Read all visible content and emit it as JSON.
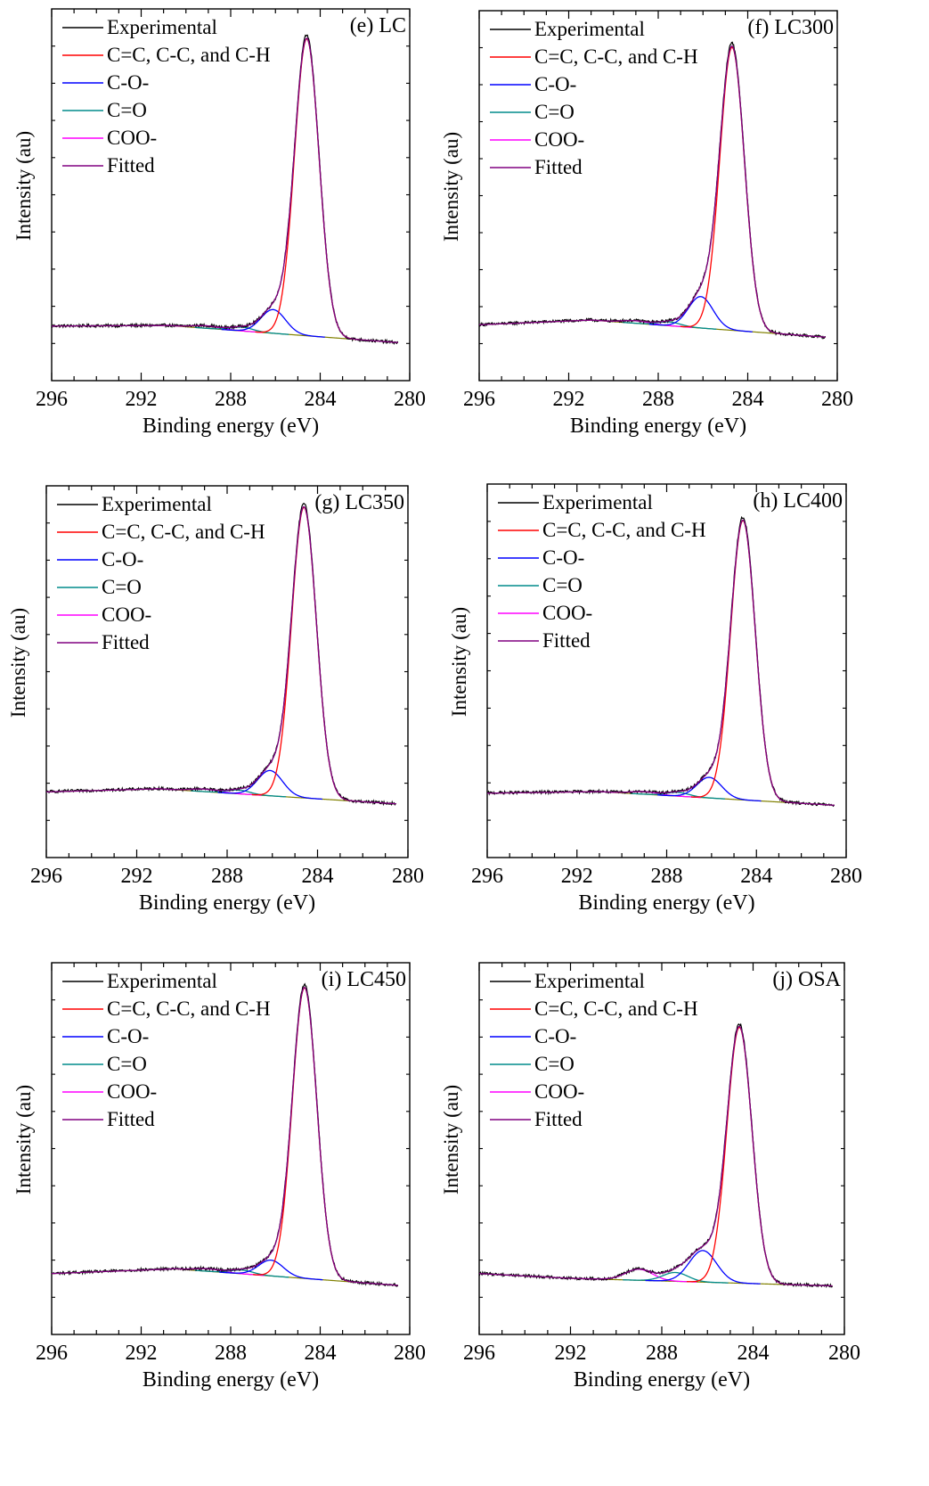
{
  "colors": {
    "experimental": "#000000",
    "cc": "#ff0000",
    "co": "#0000ff",
    "c_eq_o": "#008b8b",
    "coo": "#ff00ff",
    "fitted": "#800080",
    "baseline": "#808000"
  },
  "chart_data": [
    {
      "type": "line",
      "panel_label": "(e) LC",
      "xlabel": "Binding energy (eV)",
      "ylabel": "Intensity (au)",
      "xlim": [
        296,
        280
      ],
      "x_reversed": true,
      "xticks": [
        296,
        292,
        288,
        284,
        280
      ],
      "legend": {
        "placement": "top-left",
        "entries": [
          "Experimental",
          "C=C, C-C, and C-H",
          "C-O-",
          "C=O",
          "COO-",
          "Fitted"
        ]
      },
      "ylim": [
        0,
        1.0
      ],
      "baseline": {
        "left": 0.055,
        "knee_x": 290.8,
        "knee_y": 0.057,
        "right": 0.0
      },
      "peaks": [
        {
          "series": "C=C, C-C, and C-H",
          "center": 284.6,
          "height": 0.94,
          "width": 0.55
        },
        {
          "series": "C-O-",
          "center": 286.1,
          "height": 0.075,
          "width": 0.55
        },
        {
          "series": "C=O",
          "center": 287.5,
          "height": 0.012,
          "width": 0.5
        },
        {
          "series": "COO-",
          "center": 289.1,
          "height": 0.008,
          "width": 0.6
        }
      ]
    },
    {
      "type": "line",
      "panel_label": "(f) LC300",
      "xlabel": "Binding energy (eV)",
      "ylabel": "Intensity (au)",
      "xlim": [
        296,
        280
      ],
      "x_reversed": true,
      "xticks": [
        296,
        292,
        288,
        284,
        280
      ],
      "legend": {
        "placement": "top-left",
        "entries": [
          "Experimental",
          "C=C, C-C, and C-H",
          "C-O-",
          "C=O",
          "COO-",
          "Fitted"
        ]
      },
      "ylim": [
        0,
        1.0
      ],
      "baseline": {
        "left": 0.06,
        "knee_x": 291.0,
        "knee_y": 0.075,
        "right": 0.018
      },
      "peaks": [
        {
          "series": "C=C, C-C, and C-H",
          "center": 284.7,
          "height": 0.9,
          "width": 0.55
        },
        {
          "series": "C-O-",
          "center": 286.1,
          "height": 0.1,
          "width": 0.55
        },
        {
          "series": "C=O",
          "center": 287.5,
          "height": 0.012,
          "width": 0.5
        },
        {
          "series": "COO-",
          "center": 289.0,
          "height": 0.008,
          "width": 0.6
        }
      ]
    },
    {
      "type": "line",
      "panel_label": "(g) LC350",
      "xlabel": "Binding energy (eV)",
      "ylabel": "Intensity (au)",
      "xlim": [
        296,
        280
      ],
      "x_reversed": true,
      "xticks": [
        296,
        292,
        288,
        284,
        280
      ],
      "legend": {
        "placement": "top-left",
        "entries": [
          "Experimental",
          "C=C, C-C, and C-H",
          "C-O-",
          "C=O",
          "COO-",
          "Fitted"
        ]
      },
      "ylim": [
        0,
        1.0
      ],
      "baseline": {
        "left": 0.09,
        "knee_x": 291.0,
        "knee_y": 0.1,
        "right": 0.05
      },
      "peaks": [
        {
          "series": "C=C, C-C, and C-H",
          "center": 284.6,
          "height": 0.92,
          "width": 0.55
        },
        {
          "series": "C-O-",
          "center": 286.1,
          "height": 0.08,
          "width": 0.55
        },
        {
          "series": "C=O",
          "center": 287.5,
          "height": 0.012,
          "width": 0.5
        },
        {
          "series": "COO-",
          "center": 289.0,
          "height": 0.008,
          "width": 0.6
        }
      ]
    },
    {
      "type": "line",
      "panel_label": "(h) LC400",
      "xlabel": "Binding energy (eV)",
      "ylabel": "Intensity (au)",
      "xlim": [
        296,
        280
      ],
      "x_reversed": true,
      "xticks": [
        296,
        292,
        288,
        284,
        280
      ],
      "legend": {
        "placement": "top-left",
        "entries": [
          "Experimental",
          "C=C, C-C, and C-H",
          "C-O-",
          "C=O",
          "COO-",
          "Fitted"
        ]
      },
      "ylim": [
        0,
        1.0
      ],
      "baseline": {
        "left": 0.085,
        "knee_x": 291.0,
        "knee_y": 0.09,
        "right": 0.045
      },
      "peaks": [
        {
          "series": "C=C, C-C, and C-H",
          "center": 284.6,
          "height": 0.88,
          "width": 0.55
        },
        {
          "series": "C-O-",
          "center": 286.1,
          "height": 0.065,
          "width": 0.55
        },
        {
          "series": "C=O",
          "center": 287.5,
          "height": 0.012,
          "width": 0.5
        },
        {
          "series": "COO-",
          "center": 289.0,
          "height": 0.008,
          "width": 0.6
        }
      ]
    },
    {
      "type": "line",
      "panel_label": "(i) LC450",
      "xlabel": "Binding energy (eV)",
      "ylabel": "Intensity (au)",
      "xlim": [
        296,
        280
      ],
      "x_reversed": true,
      "xticks": [
        296,
        292,
        288,
        284,
        280
      ],
      "legend": {
        "placement": "top-left",
        "entries": [
          "Experimental",
          "C=C, C-C, and C-H",
          "C-O-",
          "C=O",
          "COO-",
          "Fitted"
        ]
      },
      "ylim": [
        0,
        1.0
      ],
      "baseline": {
        "left": 0.075,
        "knee_x": 290.5,
        "knee_y": 0.09,
        "right": 0.035
      },
      "peaks": [
        {
          "series": "C=C, C-C, and C-H",
          "center": 284.7,
          "height": 0.92,
          "width": 0.55
        },
        {
          "series": "C-O-",
          "center": 286.2,
          "height": 0.05,
          "width": 0.55
        },
        {
          "series": "C=O",
          "center": 287.5,
          "height": 0.012,
          "width": 0.5
        },
        {
          "series": "COO-",
          "center": 289.0,
          "height": 0.008,
          "width": 0.6
        }
      ]
    },
    {
      "type": "line",
      "panel_label": "(j) OSA",
      "xlabel": "Binding energy (eV)",
      "ylabel": "Intensity (au)",
      "xlim": [
        296,
        280
      ],
      "x_reversed": true,
      "xticks": [
        296,
        292,
        288,
        284,
        280
      ],
      "legend": {
        "placement": "top-left",
        "entries": [
          "Experimental",
          "C=C, C-C, and C-H",
          "C-O-",
          "C=O",
          "COO-",
          "Fitted"
        ]
      },
      "ylim": [
        0,
        1.0
      ],
      "baseline": {
        "left": 0.075,
        "knee_x": 292.0,
        "knee_y": 0.06,
        "right": 0.035
      },
      "peaks": [
        {
          "series": "C=C, C-C, and C-H",
          "center": 284.6,
          "height": 0.81,
          "width": 0.55
        },
        {
          "series": "C-O-",
          "center": 286.2,
          "height": 0.1,
          "width": 0.6
        },
        {
          "series": "C=O",
          "center": 287.4,
          "height": 0.028,
          "width": 0.55
        },
        {
          "series": "COO-",
          "center": 289.0,
          "height": 0.035,
          "width": 0.6
        }
      ]
    }
  ]
}
